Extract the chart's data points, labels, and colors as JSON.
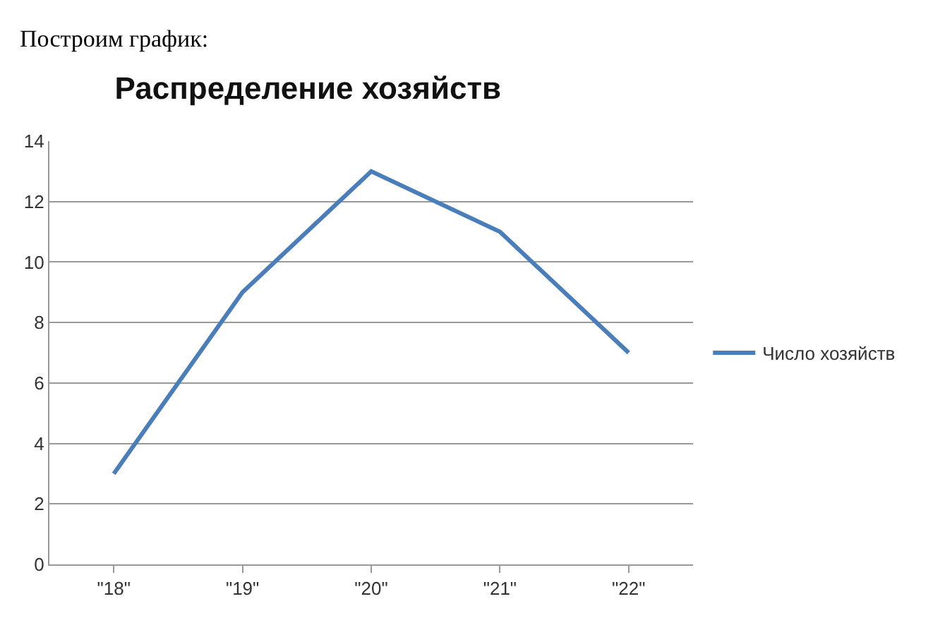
{
  "chart_data": {
    "type": "line",
    "title": "Распределение хозяйств",
    "annotations": [
      "Построим график:"
    ],
    "categories": [
      "\"18\"",
      "\"19\"",
      "\"20\"",
      "\"21\"",
      "\"22\""
    ],
    "series": [
      {
        "name": "Число хозяйств",
        "color": "#4a7ebb",
        "values": [
          3,
          9,
          13,
          11,
          7
        ]
      }
    ],
    "ylim": [
      0,
      14
    ],
    "yticks": [
      0,
      2,
      4,
      6,
      8,
      10,
      12,
      14
    ],
    "grid": "y",
    "legend": "right",
    "marker": "none",
    "line_style": "solid"
  }
}
